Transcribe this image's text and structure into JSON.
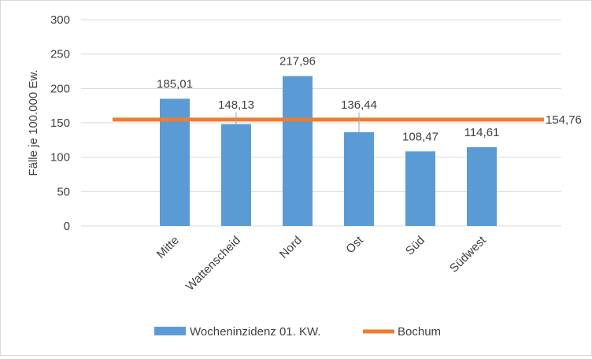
{
  "chart_data": {
    "type": "bar",
    "categories": [
      "Mitte",
      "Wattenscheid",
      "Nord",
      "Ost",
      "Süd",
      "Südwest"
    ],
    "category_labels": [
      "Mitte",
      "Wattenscheid",
      "Nord",
      "Ost",
      "Süd",
      "Südwest"
    ],
    "series": [
      {
        "name": "Wocheninzidenz 01. KW.",
        "type": "bar",
        "values": [
          185.01,
          148.13,
          217.96,
          136.44,
          108.47,
          114.61
        ],
        "value_labels": [
          "185,01",
          "148,13",
          "217,96",
          "136,44",
          "108,47",
          "114,61"
        ],
        "color": "#5b9bd5"
      },
      {
        "name": "Bochum",
        "type": "line",
        "value": 154.76,
        "value_label": "154,76",
        "color": "#ed7d31"
      }
    ],
    "ylabel": "Fälle je 100.000 Ew.",
    "xlabel": "",
    "ylim": [
      0,
      300
    ],
    "yticks": [
      0,
      50,
      100,
      150,
      200,
      250,
      300
    ],
    "ytick_labels": [
      "0",
      "50",
      "100",
      "150",
      "200",
      "250",
      "300"
    ],
    "grid": true,
    "legend_position": "bottom",
    "gridline_color": "#d9d9d9"
  }
}
